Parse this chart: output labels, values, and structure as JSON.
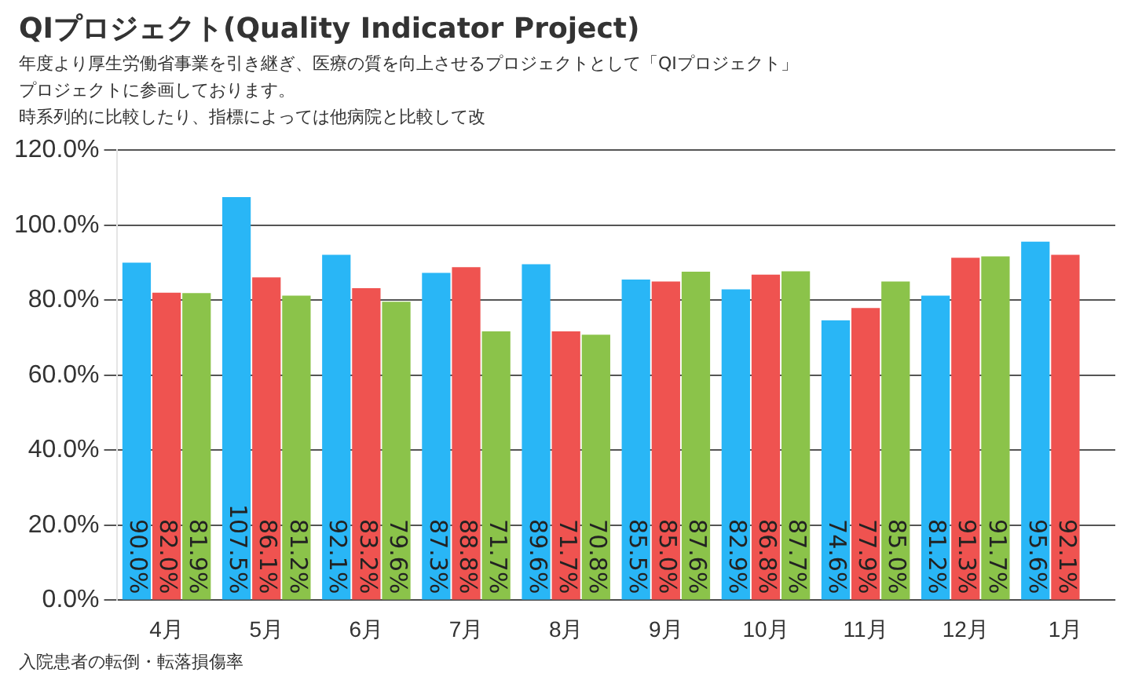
{
  "chart_data": {
    "type": "bar",
    "title": "QIプロジェクト(Quality Indicator Project)",
    "annotations": [
      "年度より厚生労働省事業を引き継ぎ、医療の質を向上させるプロジェクトとして「QIプロジェクト」",
      "プロジェクトに参画しております。",
      "時系列的に比較したり、指標によっては他病院と比較して改",
      "入院患者の転倒・転落損傷率"
    ],
    "categories": [
      "4月",
      "5月",
      "6月",
      "7月",
      "8月",
      "9月",
      "10月",
      "11月",
      "12月",
      "1月"
    ],
    "series": [
      {
        "color": "#29b6f6",
        "values": [
          90.0,
          107.5,
          92.1,
          87.3,
          89.6,
          85.5,
          82.9,
          74.6,
          81.2,
          95.6
        ],
        "value_labels": [
          "90.0%",
          "107.5%",
          "92.1%",
          "87.3%",
          "89.6%",
          "85.5%",
          "82.9%",
          "74.6%",
          "81.2%",
          "95.6%"
        ]
      },
      {
        "color": "#ef5350",
        "values": [
          82.0,
          86.1,
          83.2,
          88.8,
          71.7,
          85.0,
          86.8,
          77.9,
          91.3,
          92.1
        ],
        "value_labels": [
          "82.0%",
          "86.1%",
          "83.2%",
          "88.8%",
          "71.7%",
          "85.0%",
          "86.8%",
          "77.9%",
          "91.3%",
          "92.1%"
        ]
      },
      {
        "color": "#8bc34a",
        "values": [
          81.9,
          81.2,
          79.6,
          71.7,
          70.8,
          87.6,
          87.7,
          85.0,
          91.7,
          null
        ],
        "value_labels": [
          "81.9%",
          "81.2%",
          "79.6%",
          "71.7%",
          "70.8%",
          "87.6%",
          "87.7%",
          "85.0%",
          "91.7%",
          null
        ]
      }
    ],
    "ylim": [
      0,
      120
    ],
    "yticks": [
      {
        "value": 0,
        "label": "0.0%"
      },
      {
        "value": 20,
        "label": "20.0%"
      },
      {
        "value": 40,
        "label": "40.0%"
      },
      {
        "value": 60,
        "label": "60.0%"
      },
      {
        "value": 80,
        "label": "80.0%"
      },
      {
        "value": 100,
        "label": "100.0%"
      },
      {
        "value": 120,
        "label": "120.0%"
      }
    ],
    "grid": "y",
    "legend": false
  }
}
